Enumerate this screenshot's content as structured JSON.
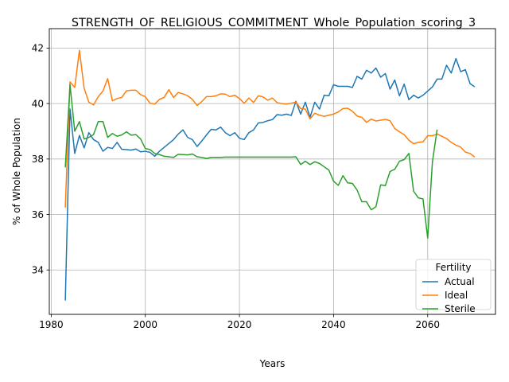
{
  "chart_data": {
    "type": "line",
    "title": "STRENGTH_OF_RELIGIOUS_COMMITMENT_Whole_Population_scoring_3",
    "xlabel": "Years",
    "ylabel": "% of Whole Population",
    "xlim": [
      1979.6,
      2074.4
    ],
    "ylim": [
      32.4,
      42.7
    ],
    "xticks": [
      1980,
      2000,
      2020,
      2040,
      2060
    ],
    "yticks": [
      34,
      36,
      38,
      40,
      42
    ],
    "grid": true,
    "legend": {
      "title": "Fertility",
      "placement": "lower right"
    },
    "series": [
      {
        "name": "Actual",
        "color": "#1f77b4",
        "x": [
          1983,
          1984,
          1985,
          1986,
          1987,
          1988,
          1989,
          1990,
          1991,
          1992,
          1993,
          1994,
          1995,
          1996,
          1997,
          1998,
          1999,
          2000,
          2001,
          2002,
          2003,
          2004,
          2005,
          2006,
          2007,
          2008,
          2009,
          2010,
          2011,
          2012,
          2013,
          2014,
          2015,
          2016,
          2017,
          2018,
          2019,
          2020,
          2021,
          2022,
          2023,
          2024,
          2025,
          2026,
          2027,
          2028,
          2029,
          2030,
          2031,
          2032,
          2033,
          2034,
          2035,
          2036,
          2037,
          2038,
          2039,
          2040,
          2041,
          2042,
          2043,
          2044,
          2045,
          2046,
          2047,
          2048,
          2049,
          2050,
          2051,
          2052,
          2053,
          2054,
          2055,
          2056,
          2057,
          2058,
          2059,
          2060,
          2061,
          2062,
          2063,
          2064,
          2065,
          2066,
          2067,
          2068,
          2069,
          2070
        ],
        "values": [
          32.9,
          39.8,
          38.2,
          38.85,
          38.4,
          38.95,
          38.7,
          38.6,
          38.28,
          38.42,
          38.38,
          38.6,
          38.35,
          38.34,
          38.32,
          38.36,
          38.26,
          38.28,
          38.24,
          38.1,
          38.28,
          38.42,
          38.56,
          38.7,
          38.9,
          39.05,
          38.78,
          38.7,
          38.45,
          38.65,
          38.87,
          39.07,
          39.05,
          39.15,
          38.95,
          38.84,
          38.95,
          38.75,
          38.7,
          38.95,
          39.05,
          39.3,
          39.32,
          39.38,
          39.42,
          39.6,
          39.58,
          39.62,
          39.57,
          40.08,
          39.62,
          40.05,
          39.5,
          40.05,
          39.8,
          40.3,
          40.28,
          40.68,
          40.62,
          40.62,
          40.62,
          40.58,
          40.98,
          40.88,
          41.2,
          41.1,
          41.28,
          40.95,
          41.08,
          40.52,
          40.85,
          40.28,
          40.7,
          40.14,
          40.3,
          40.2,
          40.3,
          40.45,
          40.6,
          40.88,
          40.88,
          41.38,
          41.1,
          41.62,
          41.15,
          41.22,
          40.72,
          40.6
        ]
      },
      {
        "name": "Ideal",
        "color": "#ff7f0e",
        "x": [
          1983,
          1984,
          1985,
          1986,
          1987,
          1988,
          1989,
          1990,
          1991,
          1992,
          1993,
          1994,
          1995,
          1996,
          1997,
          1998,
          1999,
          2000,
          2001,
          2002,
          2003,
          2004,
          2005,
          2006,
          2007,
          2008,
          2009,
          2010,
          2011,
          2012,
          2013,
          2014,
          2015,
          2016,
          2017,
          2018,
          2019,
          2020,
          2021,
          2022,
          2023,
          2024,
          2025,
          2026,
          2027,
          2028,
          2029,
          2030,
          2031,
          2032,
          2033,
          2034,
          2035,
          2036,
          2037,
          2038,
          2039,
          2040,
          2041,
          2042,
          2043,
          2044,
          2045,
          2046,
          2047,
          2048,
          2049,
          2050,
          2051,
          2052,
          2053,
          2054,
          2055,
          2056,
          2057,
          2058,
          2059,
          2060,
          2061,
          2062,
          2063,
          2064,
          2065,
          2066,
          2067,
          2068,
          2069,
          2070
        ],
        "values": [
          36.25,
          40.78,
          40.58,
          41.92,
          40.55,
          40.05,
          39.95,
          40.25,
          40.45,
          40.9,
          40.1,
          40.18,
          40.22,
          40.46,
          40.48,
          40.48,
          40.32,
          40.25,
          40.01,
          39.98,
          40.15,
          40.22,
          40.5,
          40.22,
          40.4,
          40.35,
          40.28,
          40.15,
          39.93,
          40.07,
          40.25,
          40.25,
          40.28,
          40.35,
          40.34,
          40.25,
          40.3,
          40.18,
          40.01,
          40.2,
          40.04,
          40.28,
          40.24,
          40.12,
          40.2,
          40.03,
          40.0,
          39.98,
          40.01,
          40.05,
          39.82,
          39.8,
          39.45,
          39.65,
          39.58,
          39.54,
          39.58,
          39.62,
          39.7,
          39.82,
          39.83,
          39.72,
          39.55,
          39.5,
          39.32,
          39.44,
          39.37,
          39.4,
          39.43,
          39.38,
          39.1,
          38.98,
          38.88,
          38.68,
          38.55,
          38.6,
          38.62,
          38.84,
          38.84,
          38.9,
          38.82,
          38.74,
          38.6,
          38.5,
          38.43,
          38.25,
          38.2,
          38.07
        ]
      },
      {
        "name": "Sterile",
        "color": "#2ca02c",
        "x": [
          1983,
          1984,
          1985,
          1986,
          1987,
          1988,
          1989,
          1990,
          1991,
          1992,
          1993,
          1994,
          1995,
          1996,
          1997,
          1998,
          1999,
          2000,
          2001,
          2002,
          2003,
          2004,
          2005,
          2006,
          2007,
          2008,
          2009,
          2010,
          2011,
          2012,
          2013,
          2014,
          2015,
          2016,
          2017,
          2018,
          2019,
          2020,
          2021,
          2022,
          2023,
          2024,
          2025,
          2026,
          2027,
          2028,
          2029,
          2030,
          2031,
          2032,
          2033,
          2034,
          2035,
          2036,
          2037,
          2038,
          2039,
          2040,
          2041,
          2042,
          2043,
          2044,
          2045,
          2046,
          2047,
          2048,
          2049,
          2050,
          2051,
          2052,
          2053,
          2054,
          2055,
          2056,
          2057,
          2058,
          2059,
          2060,
          2061,
          2062
        ],
        "values": [
          37.7,
          40.68,
          39.0,
          39.35,
          38.72,
          38.78,
          38.88,
          39.35,
          39.35,
          38.78,
          38.92,
          38.82,
          38.87,
          38.98,
          38.86,
          38.88,
          38.72,
          38.38,
          38.34,
          38.2,
          38.16,
          38.1,
          38.08,
          38.06,
          38.17,
          38.16,
          38.15,
          38.18,
          38.08,
          38.06,
          38.02,
          38.06,
          38.06,
          38.06,
          38.07,
          38.07,
          38.07,
          38.07,
          38.07,
          38.07,
          38.07,
          38.07,
          38.07,
          38.07,
          38.07,
          38.07,
          38.07,
          38.07,
          38.07,
          38.08,
          37.8,
          37.92,
          37.8,
          37.9,
          37.84,
          37.72,
          37.6,
          37.2,
          37.05,
          37.4,
          37.14,
          37.12,
          36.88,
          36.46,
          36.46,
          36.17,
          36.28,
          37.07,
          37.04,
          37.55,
          37.63,
          37.92,
          37.98,
          38.2,
          36.84,
          36.6,
          36.56,
          35.15,
          37.9,
          39.06
        ]
      }
    ]
  }
}
